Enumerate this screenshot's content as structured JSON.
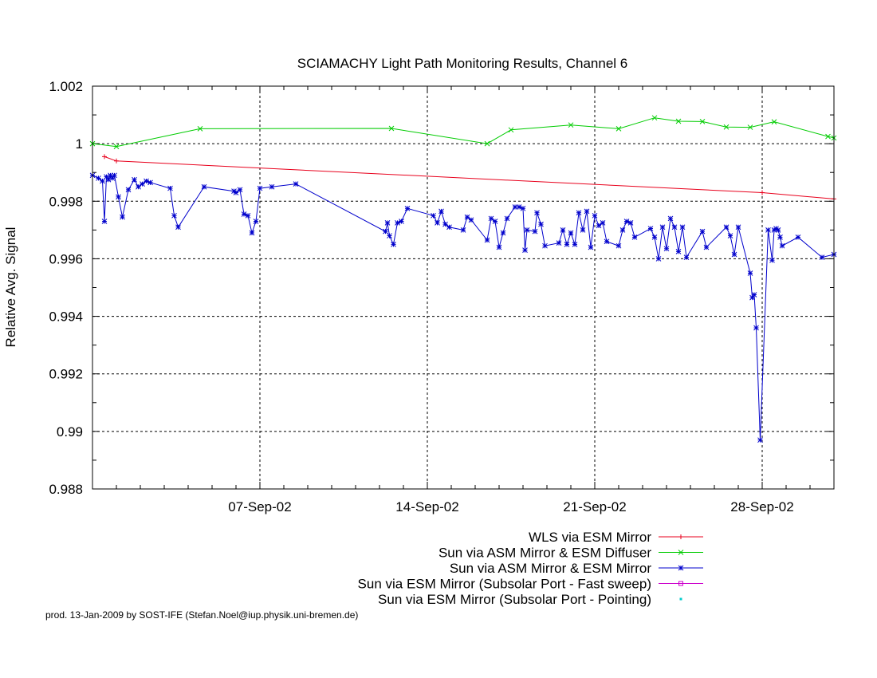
{
  "chart_data": {
    "type": "line",
    "title": "SCIAMACHY Light Path Monitoring Results, Channel 6",
    "xlabel": "",
    "ylabel": "Relative Avg. Signal",
    "xlim": [
      "2002-08-31",
      "2002-10-01"
    ],
    "ylim": [
      0.988,
      1.002
    ],
    "grid": true,
    "legend_position": "bottom-right",
    "x_ticks": [
      {
        "date": "2002-09-07",
        "label": "07-Sep-02"
      },
      {
        "date": "2002-09-14",
        "label": "14-Sep-02"
      },
      {
        "date": "2002-09-21",
        "label": "21-Sep-02"
      },
      {
        "date": "2002-09-28",
        "label": "28-Sep-02"
      }
    ],
    "y_ticks": [
      {
        "value": 0.988,
        "label": "0.988"
      },
      {
        "value": 0.99,
        "label": "0.99"
      },
      {
        "value": 0.992,
        "label": "0.992"
      },
      {
        "value": 0.994,
        "label": "0.994"
      },
      {
        "value": 0.996,
        "label": "0.996"
      },
      {
        "value": 0.998,
        "label": "0.998"
      },
      {
        "value": 1.0,
        "label": "1"
      },
      {
        "value": 1.002,
        "label": "1.002"
      }
    ],
    "series": [
      {
        "name": "WLS via ESM Mirror",
        "color": "#e8001c",
        "marker": "plus",
        "points": [
          {
            "x": "2002-08-31T12:00",
            "y": 0.99955
          },
          {
            "x": "2002-09-01T00:00",
            "y": 0.9994
          },
          {
            "x": "2002-09-28T00:00",
            "y": 0.9983
          },
          {
            "x": "2002-10-01T00:00",
            "y": 0.99808
          }
        ]
      },
      {
        "name": "Sun via ASM Mirror & ESM Diffuser",
        "color": "#00cc00",
        "marker": "cross",
        "points": [
          {
            "x": "2002-08-31T00:00",
            "y": 1.0
          },
          {
            "x": "2002-09-01T00:00",
            "y": 0.9999
          },
          {
            "x": "2002-09-04T12:00",
            "y": 1.00052
          },
          {
            "x": "2002-09-12T12:00",
            "y": 1.00053
          },
          {
            "x": "2002-09-16T12:00",
            "y": 1.0
          },
          {
            "x": "2002-09-17T12:00",
            "y": 1.00048
          },
          {
            "x": "2002-09-20T00:00",
            "y": 1.00065
          },
          {
            "x": "2002-09-22T00:00",
            "y": 1.00052
          },
          {
            "x": "2002-09-23T12:00",
            "y": 1.0009
          },
          {
            "x": "2002-09-24T12:00",
            "y": 1.00078
          },
          {
            "x": "2002-09-25T12:00",
            "y": 1.00077
          },
          {
            "x": "2002-09-26T12:00",
            "y": 1.00058
          },
          {
            "x": "2002-09-27T12:00",
            "y": 1.00057
          },
          {
            "x": "2002-09-28T12:00",
            "y": 1.00076
          },
          {
            "x": "2002-09-30T18:00",
            "y": 1.00025
          },
          {
            "x": "2002-10-01T00:00",
            "y": 1.0002
          }
        ]
      },
      {
        "name": "Sun via ASM Mirror & ESM Mirror",
        "color": "#0000cc",
        "marker": "star",
        "points": [
          {
            "x": "2002-08-31T00:00",
            "y": 0.9989
          },
          {
            "x": "2002-08-31T06:00",
            "y": 0.9988
          },
          {
            "x": "2002-08-31T10:00",
            "y": 0.9987
          },
          {
            "x": "2002-08-31T12:00",
            "y": 0.9973
          },
          {
            "x": "2002-08-31T14:00",
            "y": 0.99885
          },
          {
            "x": "2002-08-31T16:00",
            "y": 0.99875
          },
          {
            "x": "2002-08-31T18:00",
            "y": 0.9989
          },
          {
            "x": "2002-08-31T20:00",
            "y": 0.9988
          },
          {
            "x": "2002-08-31T22:00",
            "y": 0.9989
          },
          {
            "x": "2002-09-01T02:00",
            "y": 0.99815
          },
          {
            "x": "2002-09-01T06:00",
            "y": 0.99745
          },
          {
            "x": "2002-09-01T12:00",
            "y": 0.9984
          },
          {
            "x": "2002-09-01T18:00",
            "y": 0.99875
          },
          {
            "x": "2002-09-01T22:00",
            "y": 0.9985
          },
          {
            "x": "2002-09-02T02:00",
            "y": 0.9986
          },
          {
            "x": "2002-09-02T06:00",
            "y": 0.9987
          },
          {
            "x": "2002-09-02T10:00",
            "y": 0.99865
          },
          {
            "x": "2002-09-03T06:00",
            "y": 0.99845
          },
          {
            "x": "2002-09-03T10:00",
            "y": 0.9975
          },
          {
            "x": "2002-09-03T14:00",
            "y": 0.9971
          },
          {
            "x": "2002-09-04T16:00",
            "y": 0.9985
          },
          {
            "x": "2002-09-05T22:00",
            "y": 0.99835
          },
          {
            "x": "2002-09-06T00:00",
            "y": 0.9983
          },
          {
            "x": "2002-09-06T04:00",
            "y": 0.9984
          },
          {
            "x": "2002-09-06T08:00",
            "y": 0.99755
          },
          {
            "x": "2002-09-06T12:00",
            "y": 0.9975
          },
          {
            "x": "2002-09-06T16:00",
            "y": 0.9969
          },
          {
            "x": "2002-09-06T20:00",
            "y": 0.9973
          },
          {
            "x": "2002-09-07T00:00",
            "y": 0.99845
          },
          {
            "x": "2002-09-07T12:00",
            "y": 0.9985
          },
          {
            "x": "2002-09-08T12:00",
            "y": 0.9986
          },
          {
            "x": "2002-09-12T06:00",
            "y": 0.99695
          },
          {
            "x": "2002-09-12T08:00",
            "y": 0.99725
          },
          {
            "x": "2002-09-12T10:00",
            "y": 0.9968
          },
          {
            "x": "2002-09-12T14:00",
            "y": 0.9965
          },
          {
            "x": "2002-09-12T18:00",
            "y": 0.99725
          },
          {
            "x": "2002-09-12T22:00",
            "y": 0.9973
          },
          {
            "x": "2002-09-13T04:00",
            "y": 0.99775
          },
          {
            "x": "2002-09-14T06:00",
            "y": 0.9975
          },
          {
            "x": "2002-09-14T10:00",
            "y": 0.99725
          },
          {
            "x": "2002-09-14T14:00",
            "y": 0.99765
          },
          {
            "x": "2002-09-14T18:00",
            "y": 0.9972
          },
          {
            "x": "2002-09-14T22:00",
            "y": 0.9971
          },
          {
            "x": "2002-09-15T12:00",
            "y": 0.997
          },
          {
            "x": "2002-09-15T16:00",
            "y": 0.99745
          },
          {
            "x": "2002-09-15T20:00",
            "y": 0.99735
          },
          {
            "x": "2002-09-16T12:00",
            "y": 0.99665
          },
          {
            "x": "2002-09-16T16:00",
            "y": 0.9974
          },
          {
            "x": "2002-09-16T20:00",
            "y": 0.9973
          },
          {
            "x": "2002-09-17T00:00",
            "y": 0.9964
          },
          {
            "x": "2002-09-17T04:00",
            "y": 0.9969
          },
          {
            "x": "2002-09-17T08:00",
            "y": 0.9974
          },
          {
            "x": "2002-09-17T16:00",
            "y": 0.9978
          },
          {
            "x": "2002-09-17T20:00",
            "y": 0.9978
          },
          {
            "x": "2002-09-18T00:00",
            "y": 0.99775
          },
          {
            "x": "2002-09-18T02:00",
            "y": 0.9963
          },
          {
            "x": "2002-09-18T04:00",
            "y": 0.997
          },
          {
            "x": "2002-09-18T12:00",
            "y": 0.99695
          },
          {
            "x": "2002-09-18T14:00",
            "y": 0.9976
          },
          {
            "x": "2002-09-18T18:00",
            "y": 0.9972
          },
          {
            "x": "2002-09-18T22:00",
            "y": 0.99645
          },
          {
            "x": "2002-09-19T12:00",
            "y": 0.99655
          },
          {
            "x": "2002-09-19T16:00",
            "y": 0.997
          },
          {
            "x": "2002-09-19T20:00",
            "y": 0.9965
          },
          {
            "x": "2002-09-20T00:00",
            "y": 0.9969
          },
          {
            "x": "2002-09-20T04:00",
            "y": 0.9965
          },
          {
            "x": "2002-09-20T08:00",
            "y": 0.9976
          },
          {
            "x": "2002-09-20T12:00",
            "y": 0.997
          },
          {
            "x": "2002-09-20T16:00",
            "y": 0.99765
          },
          {
            "x": "2002-09-20T20:00",
            "y": 0.9964
          },
          {
            "x": "2002-09-21T00:00",
            "y": 0.9975
          },
          {
            "x": "2002-09-21T04:00",
            "y": 0.99715
          },
          {
            "x": "2002-09-21T08:00",
            "y": 0.99725
          },
          {
            "x": "2002-09-21T12:00",
            "y": 0.9966
          },
          {
            "x": "2002-09-22T00:00",
            "y": 0.99645
          },
          {
            "x": "2002-09-22T04:00",
            "y": 0.997
          },
          {
            "x": "2002-09-22T08:00",
            "y": 0.9973
          },
          {
            "x": "2002-09-22T12:00",
            "y": 0.99725
          },
          {
            "x": "2002-09-22T16:00",
            "y": 0.99675
          },
          {
            "x": "2002-09-23T08:00",
            "y": 0.99705
          },
          {
            "x": "2002-09-23T12:00",
            "y": 0.99675
          },
          {
            "x": "2002-09-23T16:00",
            "y": 0.996
          },
          {
            "x": "2002-09-23T20:00",
            "y": 0.9971
          },
          {
            "x": "2002-09-24T00:00",
            "y": 0.99635
          },
          {
            "x": "2002-09-24T04:00",
            "y": 0.9974
          },
          {
            "x": "2002-09-24T08:00",
            "y": 0.9971
          },
          {
            "x": "2002-09-24T12:00",
            "y": 0.99625
          },
          {
            "x": "2002-09-24T16:00",
            "y": 0.9971
          },
          {
            "x": "2002-09-24T20:00",
            "y": 0.99605
          },
          {
            "x": "2002-09-25T12:00",
            "y": 0.99695
          },
          {
            "x": "2002-09-25T16:00",
            "y": 0.9964
          },
          {
            "x": "2002-09-26T12:00",
            "y": 0.9971
          },
          {
            "x": "2002-09-26T16:00",
            "y": 0.9968
          },
          {
            "x": "2002-09-26T20:00",
            "y": 0.99615
          },
          {
            "x": "2002-09-27T00:00",
            "y": 0.9971
          },
          {
            "x": "2002-09-27T12:00",
            "y": 0.9955
          },
          {
            "x": "2002-09-27T14:00",
            "y": 0.99465
          },
          {
            "x": "2002-09-27T16:00",
            "y": 0.99475
          },
          {
            "x": "2002-09-27T18:00",
            "y": 0.9936
          },
          {
            "x": "2002-09-27T22:00",
            "y": 0.9897
          },
          {
            "x": "2002-09-28T06:00",
            "y": 0.997
          },
          {
            "x": "2002-09-28T10:00",
            "y": 0.99595
          },
          {
            "x": "2002-09-28T12:00",
            "y": 0.997
          },
          {
            "x": "2002-09-28T14:00",
            "y": 0.99705
          },
          {
            "x": "2002-09-28T16:00",
            "y": 0.997
          },
          {
            "x": "2002-09-28T18:00",
            "y": 0.99675
          },
          {
            "x": "2002-09-28T20:00",
            "y": 0.99645
          },
          {
            "x": "2002-09-29T12:00",
            "y": 0.99675
          },
          {
            "x": "2002-09-30T12:00",
            "y": 0.99605
          },
          {
            "x": "2002-10-01T00:00",
            "y": 0.99615
          }
        ]
      },
      {
        "name": "Sun via ESM Mirror (Subsolar Port - Fast sweep)",
        "color": "#cc00cc",
        "marker": "square",
        "points": []
      },
      {
        "name": "Sun via ESM Mirror (Subsolar Port - Pointing)",
        "color": "#00cccc",
        "marker": "dot",
        "points": []
      }
    ]
  },
  "footer": {
    "credit": "prod. 13-Jan-2009 by SOST-IFE (Stefan.Noel@iup.physik.uni-bremen.de)"
  }
}
